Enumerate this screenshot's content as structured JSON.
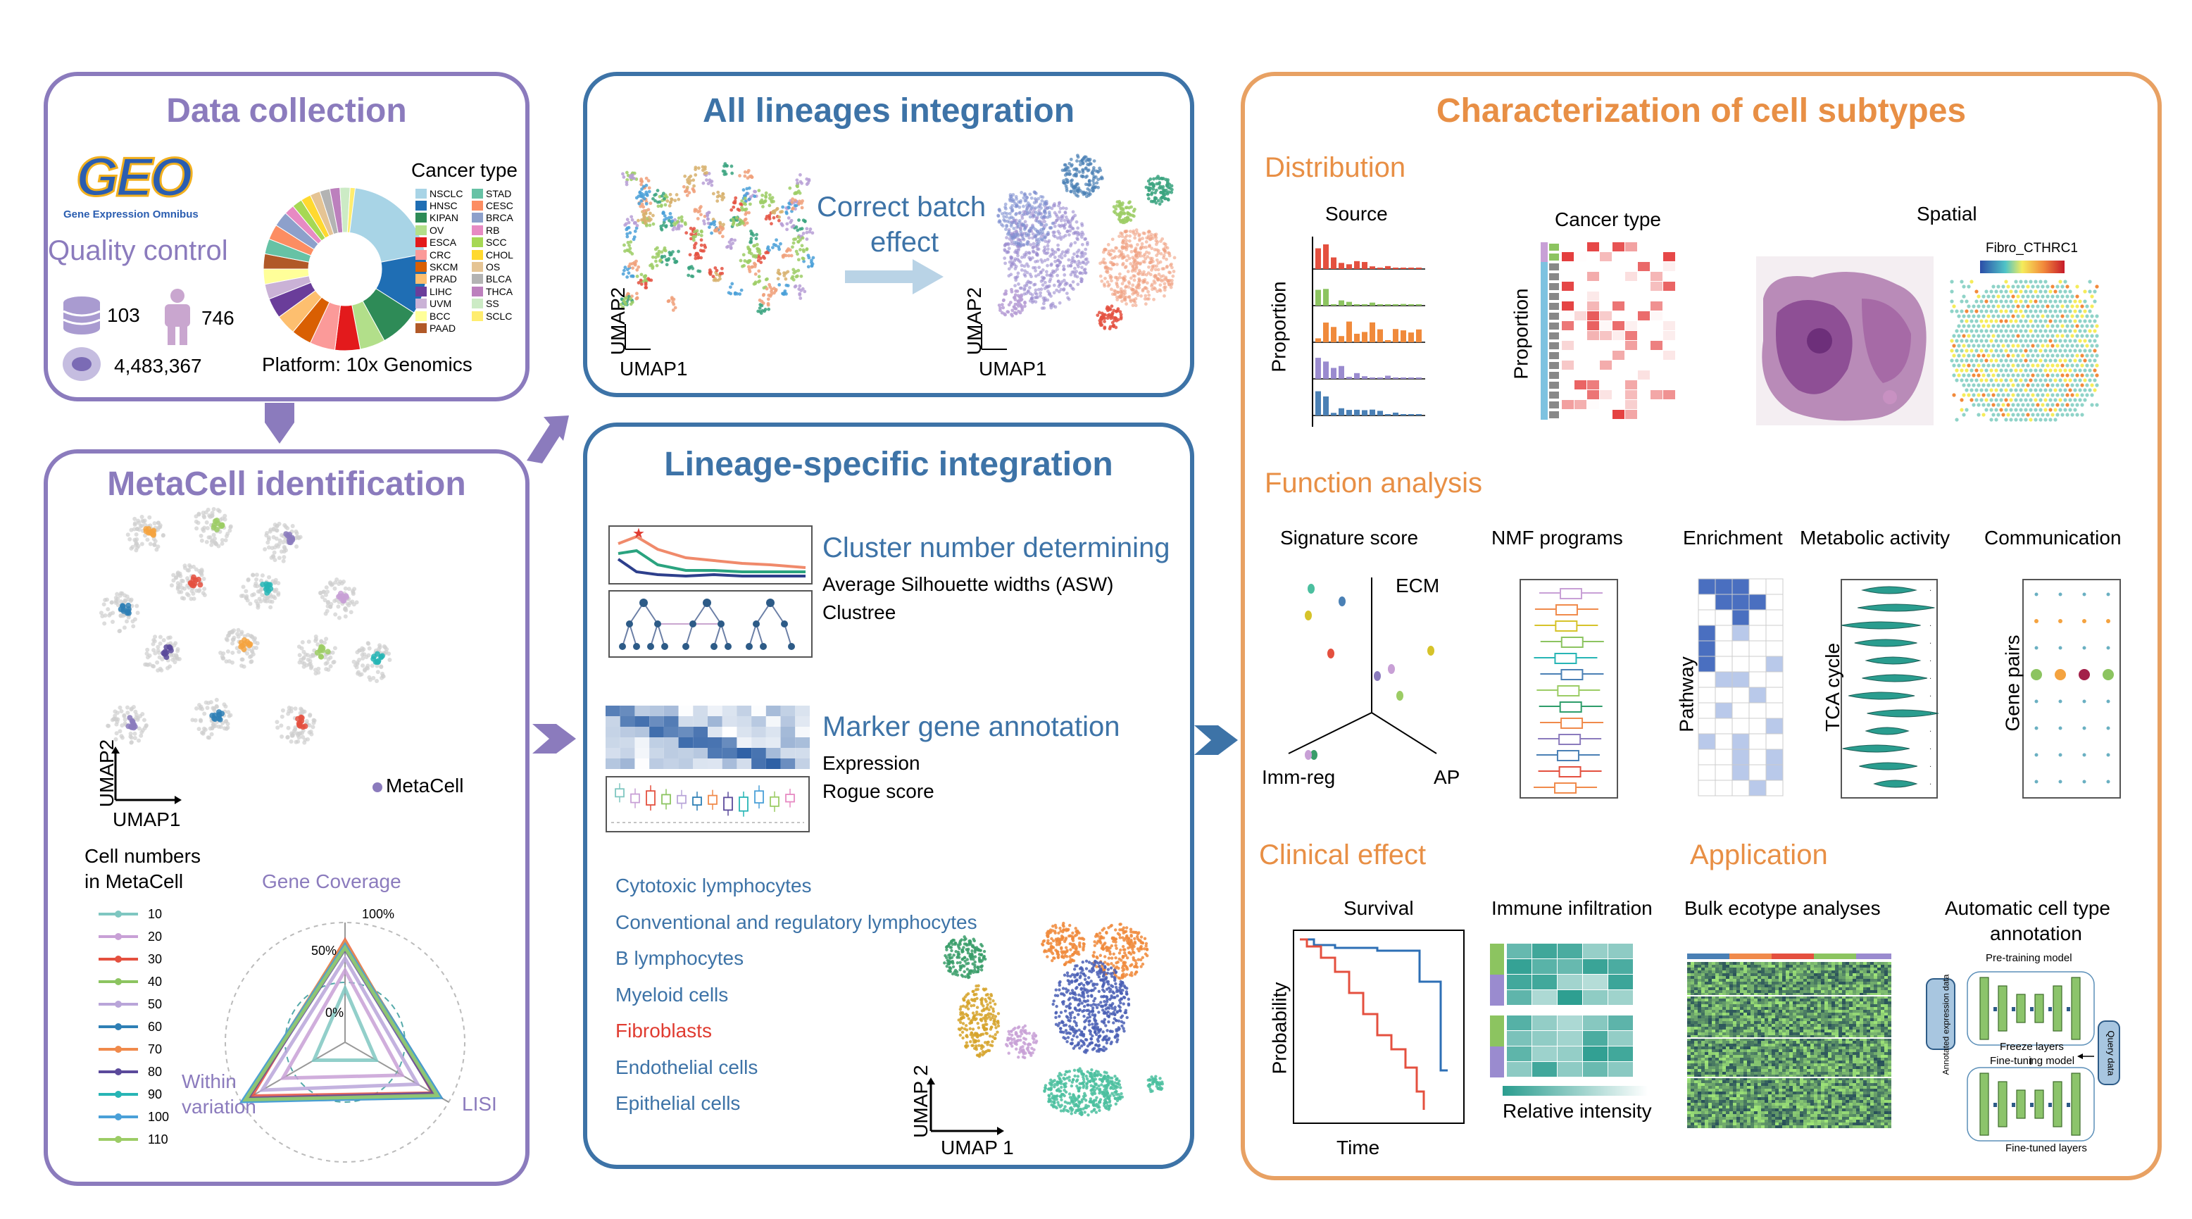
{
  "panels": {
    "data_collection": {
      "title": "Data collection",
      "geo_logo": "GEO",
      "geo_subtitle": "Gene Expression Omnibus",
      "quality_control": "Quality control",
      "stat_datasets": "103",
      "stat_patients": "746",
      "stat_cells": "4,483,367",
      "cancer_type_title": "Cancer type",
      "platform": "Platform: 10x Genomics",
      "cancer_types_col1": [
        "NSCLC",
        "HNSC",
        "KIPAN",
        "OV",
        "ESCA",
        "CRC",
        "SKCM",
        "PRAD",
        "LIHC",
        "UVM",
        "BCC",
        "PAAD"
      ],
      "cancer_types_col2": [
        "STAD",
        "CESC",
        "BRCA",
        "RB",
        "SCC",
        "CHOL",
        "OS",
        "BLCA",
        "THCA",
        "SS",
        "SCLC"
      ],
      "colors_col1": [
        "#a8d4e6",
        "#1f6eb4",
        "#2e8b57",
        "#b2df8a",
        "#e31a1c",
        "#fb9a99",
        "#d95f02",
        "#fdbf6f",
        "#6a3d9a",
        "#cab2d6",
        "#ffff99",
        "#b15928"
      ],
      "colors_col2": [
        "#66c2a5",
        "#fc8d62",
        "#8da0cb",
        "#e78ac3",
        "#a6d854",
        "#ffd92f",
        "#e5c494",
        "#b3b3b3",
        "#bc80bd",
        "#ccebc5",
        "#ffed6f"
      ]
    },
    "metacell": {
      "title": "MetaCell identification",
      "umap2": "UMAP2",
      "umap1": "UMAP1",
      "legend_metacell": "MetaCell",
      "cell_numbers_title_1": "Cell numbers",
      "cell_numbers_title_2": "in MetaCell",
      "cell_numbers": [
        "10",
        "20",
        "30",
        "40",
        "50",
        "60",
        "70",
        "80",
        "90",
        "100",
        "110"
      ],
      "cell_number_colors": [
        "#7fc7c1",
        "#c8a0d6",
        "#e4503f",
        "#8cc460",
        "#b9a5d9",
        "#2e7fb5",
        "#f08a4b",
        "#5b4a9b",
        "#27b5b5",
        "#4aa0d8",
        "#9ccc65"
      ],
      "radar_gene_coverage": "Gene Coverage",
      "radar_within_1": "Within",
      "radar_within_2": "variation",
      "radar_lisi": "LISI",
      "radar_100": "100%",
      "radar_50": "50%",
      "radar_0": "0%"
    },
    "all_lineages": {
      "title": "All lineages integration",
      "correct_1": "Correct batch",
      "correct_2": "effect",
      "umap2": "UMAP2",
      "umap1": "UMAP1"
    },
    "lineage_specific": {
      "title": "Lineage-specific integration",
      "cluster_title": "Cluster number determining",
      "cluster_sub1": "Average Silhouette widths (ASW)",
      "cluster_sub2": "Clustree",
      "marker_title": "Marker gene annotation",
      "marker_sub1": "Expression",
      "marker_sub2": "Rogue score",
      "lineages": [
        "Cytotoxic lymphocytes",
        "Conventional and regulatory lymphocytes",
        "B lymphocytes",
        "Myeloid cells",
        "Fibroblasts",
        "Endothelial cells",
        "Epithelial cells"
      ],
      "lineage_colors": [
        "#3d73a7",
        "#3d73a7",
        "#3d73a7",
        "#3d73a7",
        "#e03c31",
        "#3d73a7",
        "#3d73a7"
      ],
      "umap_2": "UMAP 2",
      "umap_1": "UMAP 1"
    },
    "characterization": {
      "title": "Characterization of cell subtypes",
      "distribution": "Distribution",
      "source": "Source",
      "cancer_type": "Cancer type",
      "spatial": "Spatial",
      "proportion": "Proportion",
      "fibro": "Fibro_CTHRC1",
      "function_analysis": "Function analysis",
      "signature_score": "Signature score",
      "ecm": "ECM",
      "immreg": "Imm-reg",
      "ap": "AP",
      "nmf": "NMF programs",
      "enrichment": "Enrichment",
      "pathway": "Pathway",
      "metabolic": "Metabolic activity",
      "tca": "TCA cycle",
      "communication": "Communication",
      "gene_pairs": "Gene pairs",
      "clinical_effect": "Clinical effect",
      "survival": "Survival",
      "probability": "Probability",
      "time": "Time",
      "immune_infiltration": "Immune infiltration",
      "relative_intensity": "Relative intensity",
      "application": "Application",
      "bulk": "Bulk ecotype analyses",
      "auto_1": "Automatic cell type",
      "auto_2": "annotation",
      "pretraining": "Pre-training model",
      "annotated": "Annotated expression data",
      "freeze": "Freeze layers",
      "query": "Query data",
      "finetuning": "Fine-tuning model",
      "finetuned": "Fine-tuned layers"
    }
  }
}
